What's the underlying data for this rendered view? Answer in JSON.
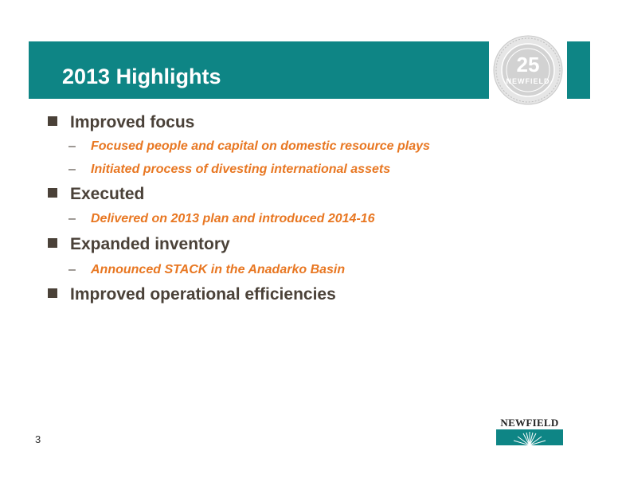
{
  "header": {
    "title": "2013 Highlights",
    "bar_color": "#0e8585"
  },
  "seal": {
    "number": "25",
    "name": "NEWFIELD"
  },
  "bullets": [
    {
      "text": "Improved focus",
      "subs": [
        "Focused people and capital on domestic resource plays",
        "Initiated process of divesting international assets"
      ]
    },
    {
      "text": "Executed",
      "subs": [
        "Delivered on 2013 plan and introduced 2014-16"
      ]
    },
    {
      "text": "Expanded inventory",
      "subs": [
        "Announced STACK in the Anadarko Basin"
      ]
    },
    {
      "text": "Improved operational efficiencies",
      "subs": []
    }
  ],
  "sub_bullet_marker": "–",
  "colors": {
    "accent": "#e87722",
    "text": "#4a4138",
    "teal": "#0e8585"
  },
  "footer": {
    "page_number": "3",
    "logo_text": "NEWFIELD"
  }
}
